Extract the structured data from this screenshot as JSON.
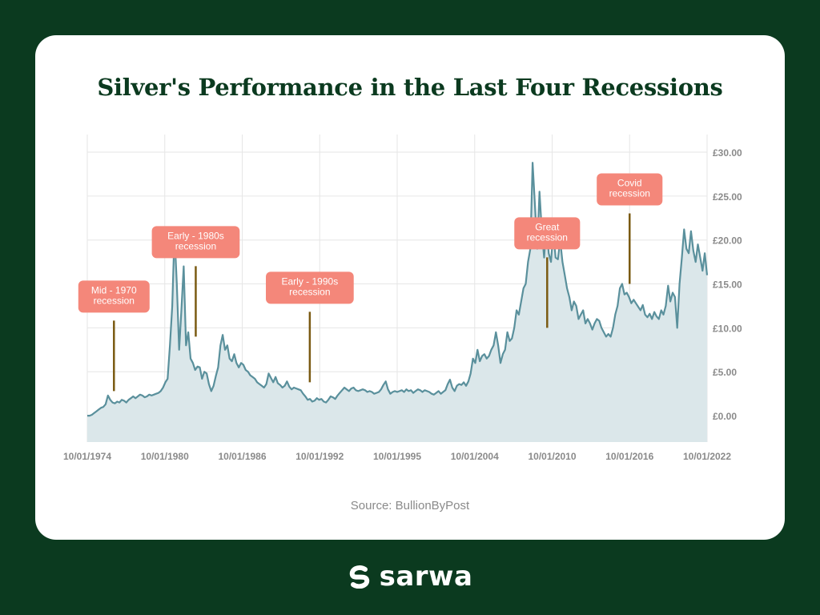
{
  "title": "Silver's Performance in the Last Four Recessions",
  "source": "Source: BullionByPost",
  "brand": {
    "name": "sarwa"
  },
  "colors": {
    "line": "#5a909c",
    "area": "#dbe7ea",
    "callout": "#f4877a",
    "marker": "#7a5a12",
    "background": "#0b3a1f"
  },
  "chart_data": {
    "type": "area",
    "title": "Silver's Performance in the Last Four Recessions",
    "y_axis_position": "right",
    "ylim": [
      -3,
      30
    ],
    "y_ticks": [
      {
        "value": 0,
        "label": "£0.00"
      },
      {
        "value": 5,
        "label": "£5.00"
      },
      {
        "value": 10,
        "label": "£10.00"
      },
      {
        "value": 15,
        "label": "£15.00"
      },
      {
        "value": 20,
        "label": "£20.00"
      },
      {
        "value": 25,
        "label": "£25.00"
      },
      {
        "value": 30,
        "label": "£30.00"
      }
    ],
    "x_tick_labels": [
      "10/01/1974",
      "10/01/1980",
      "10/01/1986",
      "10/01/1992",
      "10/01/1995",
      "10/01/2004",
      "10/01/2010",
      "10/01/2016",
      "10/01/2022"
    ],
    "grid": true,
    "series": [
      {
        "values": [
          0.0,
          0.0,
          0.1,
          0.3,
          0.5,
          0.7,
          0.9,
          1.0,
          1.3,
          2.3,
          1.8,
          1.5,
          1.4,
          1.6,
          1.5,
          1.8,
          1.7,
          1.5,
          1.8,
          2.0,
          2.2,
          2.0,
          2.2,
          2.4,
          2.3,
          2.1,
          2.2,
          2.4,
          2.3,
          2.4,
          2.5,
          2.6,
          2.8,
          3.2,
          3.8,
          4.2,
          8.0,
          12.5,
          20.8,
          15.0,
          7.5,
          12.0,
          17.0,
          8.0,
          9.5,
          6.5,
          6.0,
          5.2,
          5.6,
          5.5,
          4.2,
          5.0,
          4.8,
          3.6,
          2.8,
          3.4,
          4.5,
          5.5,
          8.0,
          9.2,
          7.5,
          8.0,
          6.5,
          6.2,
          7.0,
          6.0,
          5.5,
          6.0,
          5.8,
          5.2,
          5.0,
          4.6,
          4.4,
          4.2,
          3.8,
          3.6,
          3.4,
          3.2,
          3.6,
          4.8,
          4.3,
          3.8,
          4.4,
          3.7,
          3.5,
          3.2,
          3.4,
          3.9,
          3.3,
          3.0,
          3.2,
          3.1,
          3.0,
          2.9,
          2.5,
          2.2,
          1.8,
          1.9,
          1.6,
          1.7,
          2.0,
          1.8,
          1.9,
          1.6,
          1.5,
          1.8,
          2.2,
          2.1,
          1.9,
          2.3,
          2.6,
          2.9,
          3.2,
          3.0,
          2.8,
          3.1,
          3.2,
          2.9,
          2.8,
          2.9,
          3.0,
          2.9,
          2.7,
          2.8,
          2.7,
          2.5,
          2.6,
          2.7,
          3.0,
          3.5,
          3.9,
          3.0,
          2.5,
          2.7,
          2.8,
          2.7,
          2.8,
          2.9,
          2.7,
          3.0,
          2.8,
          2.9,
          2.6,
          2.8,
          3.0,
          2.9,
          2.7,
          2.9,
          2.8,
          2.7,
          2.5,
          2.4,
          2.6,
          2.8,
          2.5,
          2.7,
          2.9,
          3.6,
          4.1,
          3.2,
          2.8,
          3.4,
          3.6,
          3.5,
          3.8,
          3.4,
          3.9,
          4.8,
          6.5,
          6.0,
          7.5,
          6.2,
          6.8,
          7.0,
          6.5,
          6.8,
          7.5,
          8.0,
          9.5,
          8.0,
          6.0,
          7.0,
          7.5,
          9.5,
          8.5,
          8.8,
          10.0,
          12.0,
          11.5,
          13.0,
          14.5,
          15.0,
          17.5,
          19.0,
          28.8,
          24.0,
          19.0,
          25.5,
          21.0,
          18.0,
          21.8,
          18.5,
          17.5,
          21.0,
          18.0,
          17.8,
          20.0,
          17.5,
          16.0,
          14.5,
          13.5,
          12.0,
          13.0,
          12.5,
          11.0,
          11.5,
          12.0,
          10.5,
          11.0,
          10.5,
          9.8,
          10.5,
          11.0,
          10.8,
          10.0,
          9.5,
          9.0,
          9.3,
          9.0,
          10.0,
          11.5,
          12.5,
          14.5,
          15.0,
          13.8,
          14.0,
          13.5,
          12.8,
          13.2,
          12.8,
          12.4,
          12.0,
          12.6,
          11.5,
          11.2,
          11.6,
          11.0,
          11.8,
          11.3,
          11.0,
          12.0,
          11.5,
          12.5,
          14.8,
          13.0,
          14.0,
          13.5,
          10.0,
          15.0,
          18.0,
          21.2,
          19.0,
          18.5,
          21.0,
          18.8,
          17.5,
          19.5,
          18.0,
          16.5,
          18.5,
          16.0
        ]
      }
    ],
    "annotations": [
      {
        "label": [
          "Mid - 1970",
          "recession"
        ],
        "x": 0.043,
        "value": 2.8
      },
      {
        "label": [
          "Early - 1980s",
          "recession"
        ],
        "x": 0.175,
        "value": 9.0
      },
      {
        "label": [
          "Early - 1990s",
          "recession"
        ],
        "x": 0.359,
        "value": 3.8
      },
      {
        "label": [
          "Great",
          "recession"
        ],
        "x": 0.742,
        "value": 10.0
      },
      {
        "label": [
          "Covid",
          "recession"
        ],
        "x": 0.875,
        "value": 15.0
      }
    ]
  }
}
